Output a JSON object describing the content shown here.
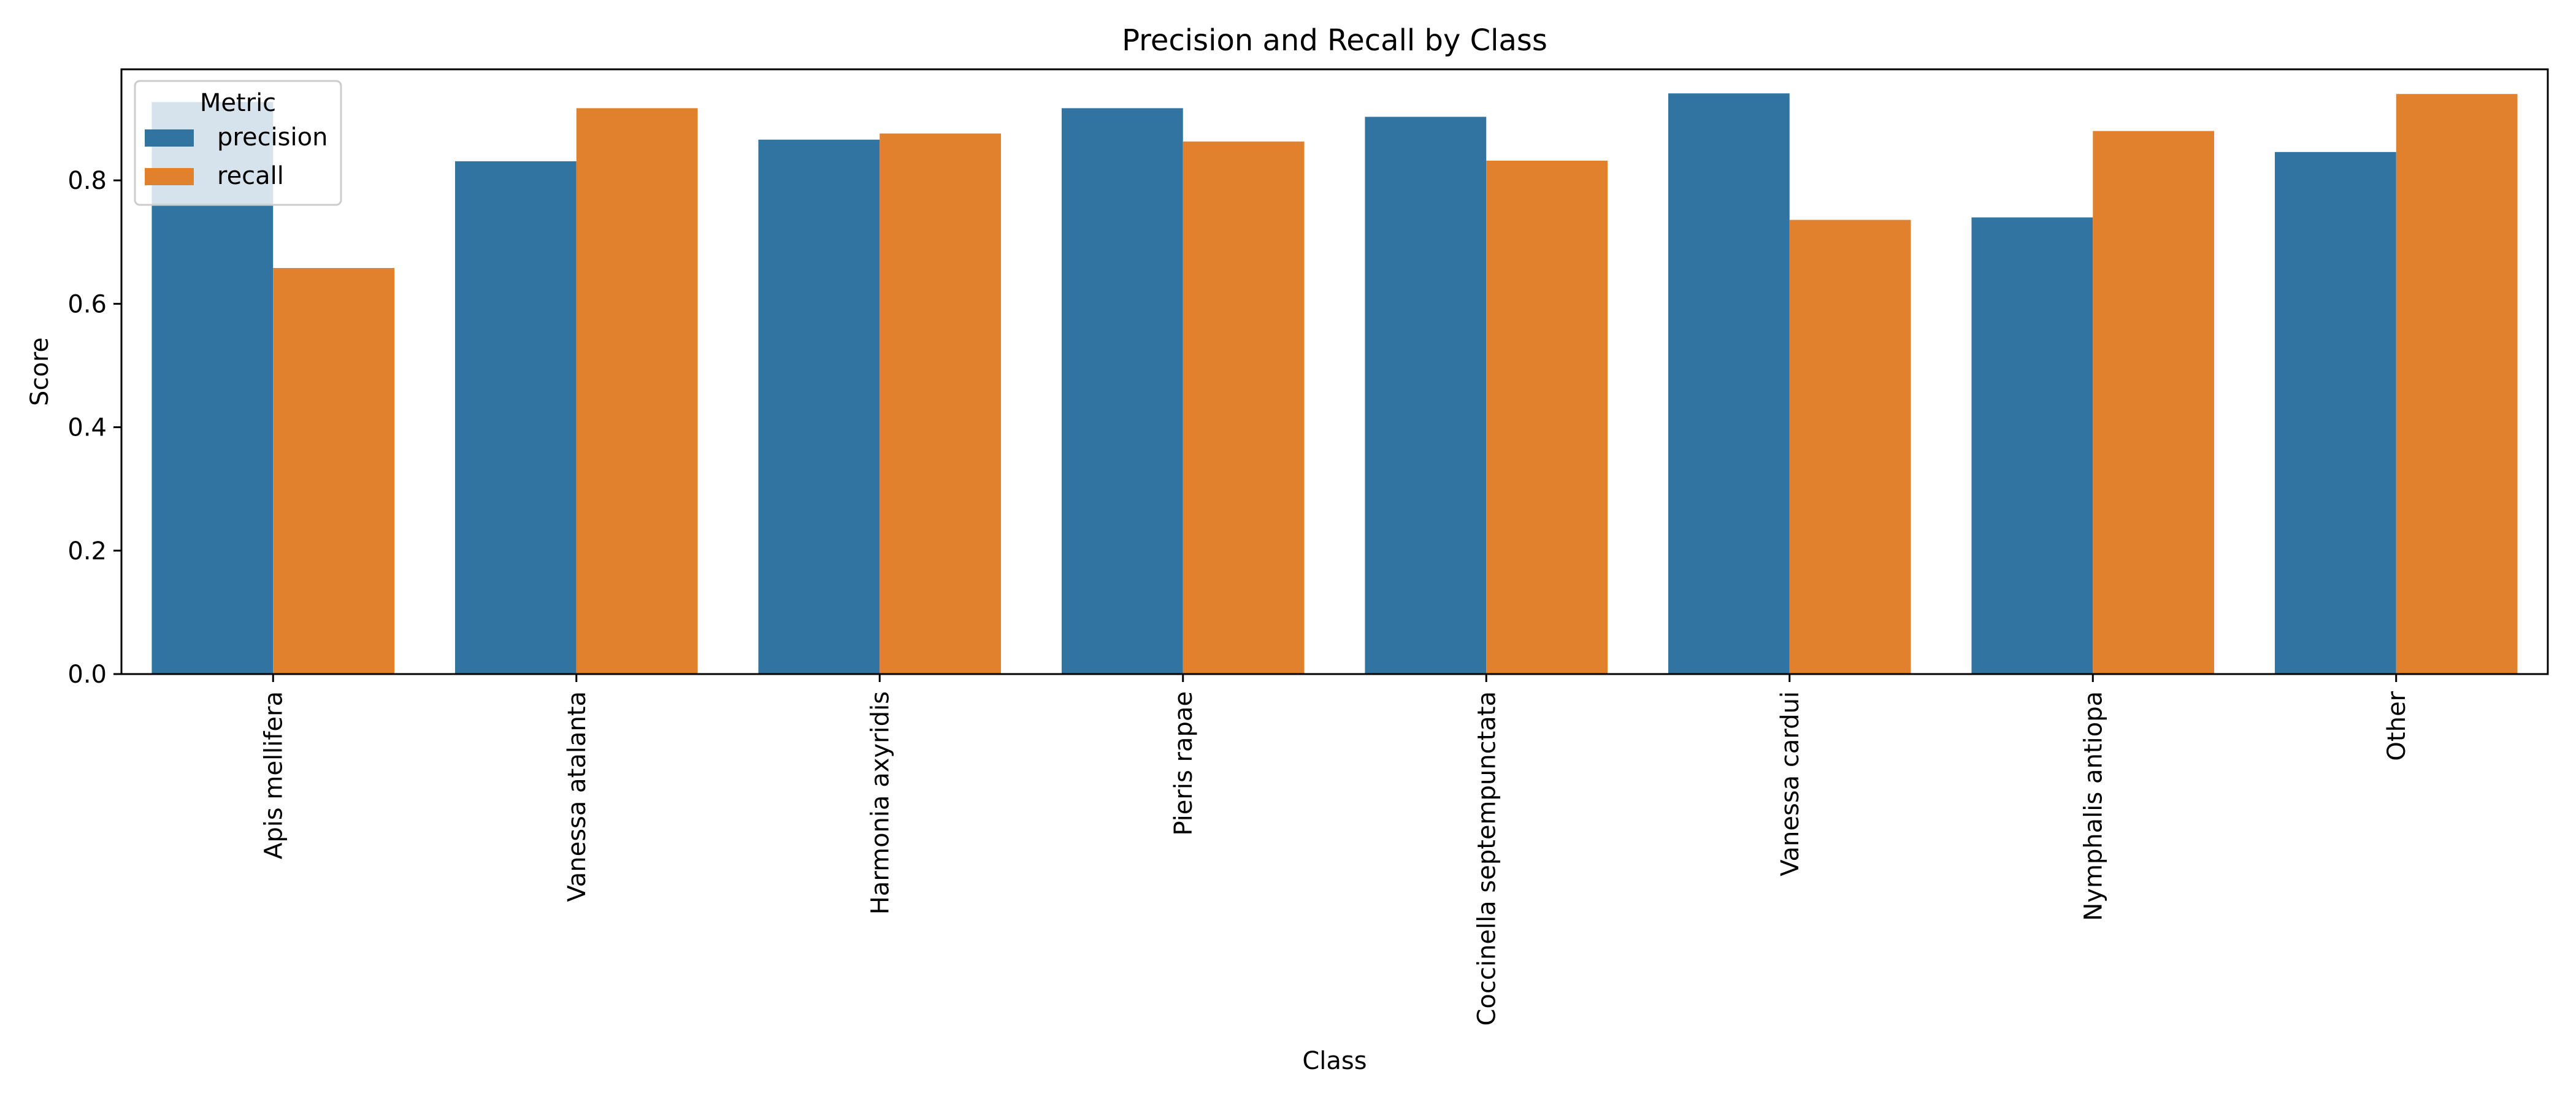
{
  "chart_data": {
    "type": "bar",
    "title": "Precision and Recall by Class",
    "xlabel": "Class",
    "ylabel": "Score",
    "ylim": [
      0,
      0.98
    ],
    "yticks": [
      0.0,
      0.2,
      0.4,
      0.6,
      0.8
    ],
    "ytick_labels": [
      "0.0",
      "0.2",
      "0.4",
      "0.6",
      "0.8"
    ],
    "categories": [
      "Apis mellifera",
      "Vanessa atalanta",
      "Harmonia axyridis",
      "Pieris rapae",
      "Coccinella septempunctata",
      "Vanessa cardui",
      "Nymphalis antiopa",
      "Other"
    ],
    "legend": {
      "title": "Metric",
      "placement": "top-left"
    },
    "grid": false,
    "series": [
      {
        "name": "precision",
        "color": "#3274a1",
        "values": [
          0.927,
          0.831,
          0.866,
          0.917,
          0.903,
          0.941,
          0.74,
          0.846
        ]
      },
      {
        "name": "recall",
        "color": "#e1812c",
        "values": [
          0.658,
          0.917,
          0.876,
          0.863,
          0.832,
          0.736,
          0.88,
          0.94
        ]
      }
    ]
  }
}
